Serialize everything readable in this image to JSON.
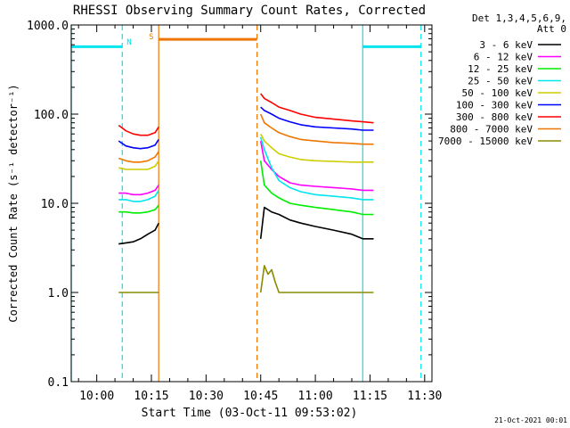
{
  "chart_data": {
    "type": "line",
    "title": "RHESSI Observing Summary Count Rates, Corrected",
    "xlabel": "Start Time (03-Oct-11 09:53:02)",
    "ylabel": "Corrected Count Rate (s⁻¹ detector⁻¹)",
    "y_scale": "log",
    "ylim": [
      0.1,
      1000.0
    ],
    "xlim": [
      "09:53",
      "11:32"
    ],
    "x_ticks": [
      "10:00",
      "10:15",
      "10:30",
      "10:45",
      "11:00",
      "11:15",
      "11:30"
    ],
    "y_ticks": [
      "0.1",
      "1.0",
      "10.0",
      "100.0",
      "1000.0"
    ],
    "grid": false,
    "legend_position": "right",
    "legend_header": [
      "Det 1,3,4,5,6,9,",
      "Att 0"
    ],
    "footer_date": "21-Oct-2021 00:01",
    "markers": {
      "N_label": "N",
      "S_label": "S",
      "night_intervals": [
        [
          "09:53",
          "10:07"
        ],
        [
          "11:13",
          "11:29"
        ]
      ],
      "night_dashed_times": [
        "10:07",
        "11:29"
      ],
      "night_solid_times": [
        "09:53",
        "11:13"
      ],
      "saa_interval": [
        "10:17",
        "10:44"
      ],
      "saa_solid_time": "10:17",
      "saa_dashed_time": "10:44",
      "night_level": 570,
      "saa_level": 690,
      "colors": {
        "night": "#00e5ee",
        "saa": "#ee7600"
      }
    },
    "series": [
      {
        "name": "3 - 6 keV",
        "color": "#000000",
        "segments": [
          {
            "x": [
              "10:06",
              "10:08",
              "10:10",
              "10:12",
              "10:14",
              "10:16",
              "10:17"
            ],
            "y": [
              3.5,
              3.6,
              3.7,
              4.0,
              4.5,
              5.0,
              6.0
            ]
          },
          {
            "x": [
              "10:45",
              "10:46",
              "10:48",
              "10:50",
              "10:53",
              "10:56",
              "11:00",
              "11:05",
              "11:10",
              "11:13",
              "11:16"
            ],
            "y": [
              4.0,
              9.0,
              8.0,
              7.5,
              6.5,
              6.0,
              5.5,
              5.0,
              4.5,
              4.0,
              4.0
            ]
          }
        ]
      },
      {
        "name": "6 - 12 keV",
        "color": "#ff00ff",
        "segments": [
          {
            "x": [
              "10:06",
              "10:08",
              "10:10",
              "10:12",
              "10:14",
              "10:16",
              "10:17"
            ],
            "y": [
              13,
              13,
              12.5,
              12.5,
              13,
              14,
              16
            ]
          },
          {
            "x": [
              "10:45",
              "10:46",
              "10:48",
              "10:50",
              "10:53",
              "10:56",
              "11:00",
              "11:05",
              "11:10",
              "11:13",
              "11:16"
            ],
            "y": [
              50,
              30,
              24,
              20,
              17,
              16,
              15.5,
              15,
              14.5,
              14,
              14
            ]
          }
        ]
      },
      {
        "name": "12 - 25 keV",
        "color": "#00ee00",
        "segments": [
          {
            "x": [
              "10:06",
              "10:08",
              "10:10",
              "10:12",
              "10:14",
              "10:16",
              "10:17"
            ],
            "y": [
              8.0,
              8.0,
              7.8,
              7.8,
              8.0,
              8.5,
              9.5
            ]
          },
          {
            "x": [
              "10:45",
              "10:46",
              "10:48",
              "10:50",
              "10:53",
              "10:56",
              "11:00",
              "11:05",
              "11:10",
              "11:13",
              "11:16"
            ],
            "y": [
              30,
              16,
              13,
              11.5,
              10,
              9.5,
              9.0,
              8.5,
              8.0,
              7.5,
              7.5
            ]
          }
        ]
      },
      {
        "name": "25 - 50 keV",
        "color": "#00e5ee",
        "segments": [
          {
            "x": [
              "10:06",
              "10:08",
              "10:10",
              "10:12",
              "10:14",
              "10:16",
              "10:17"
            ],
            "y": [
              11,
              11,
              10.5,
              10.5,
              11,
              12,
              14
            ]
          },
          {
            "x": [
              "10:45",
              "10:46",
              "10:48",
              "10:50",
              "10:53",
              "10:56",
              "11:00",
              "11:05",
              "11:10",
              "11:13",
              "11:16"
            ],
            "y": [
              55,
              40,
              25,
              18,
              15,
              13.5,
              12.5,
              12,
              11.5,
              11,
              11
            ]
          }
        ]
      },
      {
        "name": "50 - 100 keV",
        "color": "#cdcd00",
        "segments": [
          {
            "x": [
              "10:06",
              "10:08",
              "10:10",
              "10:12",
              "10:14",
              "10:16",
              "10:17"
            ],
            "y": [
              25,
              24,
              24,
              24,
              24,
              26,
              30
            ]
          },
          {
            "x": [
              "10:45",
              "10:46",
              "10:48",
              "10:50",
              "10:53",
              "10:56",
              "11:00",
              "11:05",
              "11:10",
              "11:13",
              "11:16"
            ],
            "y": [
              60,
              50,
              42,
              36,
              33,
              31,
              30,
              29.5,
              29,
              29,
              29
            ]
          }
        ]
      },
      {
        "name": "100 - 300 keV",
        "color": "#0000ff",
        "segments": [
          {
            "x": [
              "10:06",
              "10:08",
              "10:10",
              "10:12",
              "10:14",
              "10:16",
              "10:17"
            ],
            "y": [
              50,
              44,
              42,
              41,
              42,
              45,
              52
            ]
          },
          {
            "x": [
              "10:45",
              "10:46",
              "10:48",
              "10:50",
              "10:53",
              "10:56",
              "11:00",
              "11:05",
              "11:10",
              "11:13",
              "11:16"
            ],
            "y": [
              120,
              110,
              100,
              90,
              82,
              76,
              72,
              70,
              68,
              66,
              66
            ]
          }
        ]
      },
      {
        "name": "300 - 800 keV",
        "color": "#ff0000",
        "segments": [
          {
            "x": [
              "10:06",
              "10:08",
              "10:10",
              "10:12",
              "10:14",
              "10:16",
              "10:17"
            ],
            "y": [
              75,
              65,
              60,
              58,
              58,
              62,
              72
            ]
          },
          {
            "x": [
              "10:45",
              "10:46",
              "10:48",
              "10:50",
              "10:53",
              "10:56",
              "11:00",
              "11:05",
              "11:10",
              "11:13",
              "11:16"
            ],
            "y": [
              170,
              150,
              135,
              120,
              110,
              100,
              92,
              88,
              84,
              82,
              80
            ]
          }
        ]
      },
      {
        "name": "800 - 7000 keV",
        "color": "#ee7600",
        "segments": [
          {
            "x": [
              "10:06",
              "10:08",
              "10:10",
              "10:12",
              "10:14",
              "10:16",
              "10:17"
            ],
            "y": [
              32,
              30,
              29,
              29,
              30,
              33,
              38
            ]
          },
          {
            "x": [
              "10:45",
              "10:46",
              "10:48",
              "10:50",
              "10:53",
              "10:56",
              "11:00",
              "11:05",
              "11:10",
              "11:13",
              "11:16"
            ],
            "y": [
              100,
              80,
              70,
              62,
              56,
              52,
              50,
              48,
              47,
              46,
              46
            ]
          }
        ]
      },
      {
        "name": "7000 - 15000 keV",
        "color": "#8b8b00",
        "segments": [
          {
            "x": [
              "10:06",
              "10:08",
              "10:10",
              "10:12",
              "10:14",
              "10:16",
              "10:17"
            ],
            "y": [
              1.0,
              1.0,
              1.0,
              1.0,
              1.0,
              1.0,
              1.0
            ]
          },
          {
            "x": [
              "10:45",
              "10:46",
              "10:47",
              "10:48",
              "10:49",
              "10:50",
              "10:52",
              "10:55",
              "11:00",
              "11:05",
              "11:10",
              "11:16"
            ],
            "y": [
              1.0,
              2.0,
              1.6,
              1.8,
              1.3,
              1.0,
              1.0,
              1.0,
              1.0,
              1.0,
              1.0,
              1.0
            ]
          }
        ]
      }
    ]
  }
}
